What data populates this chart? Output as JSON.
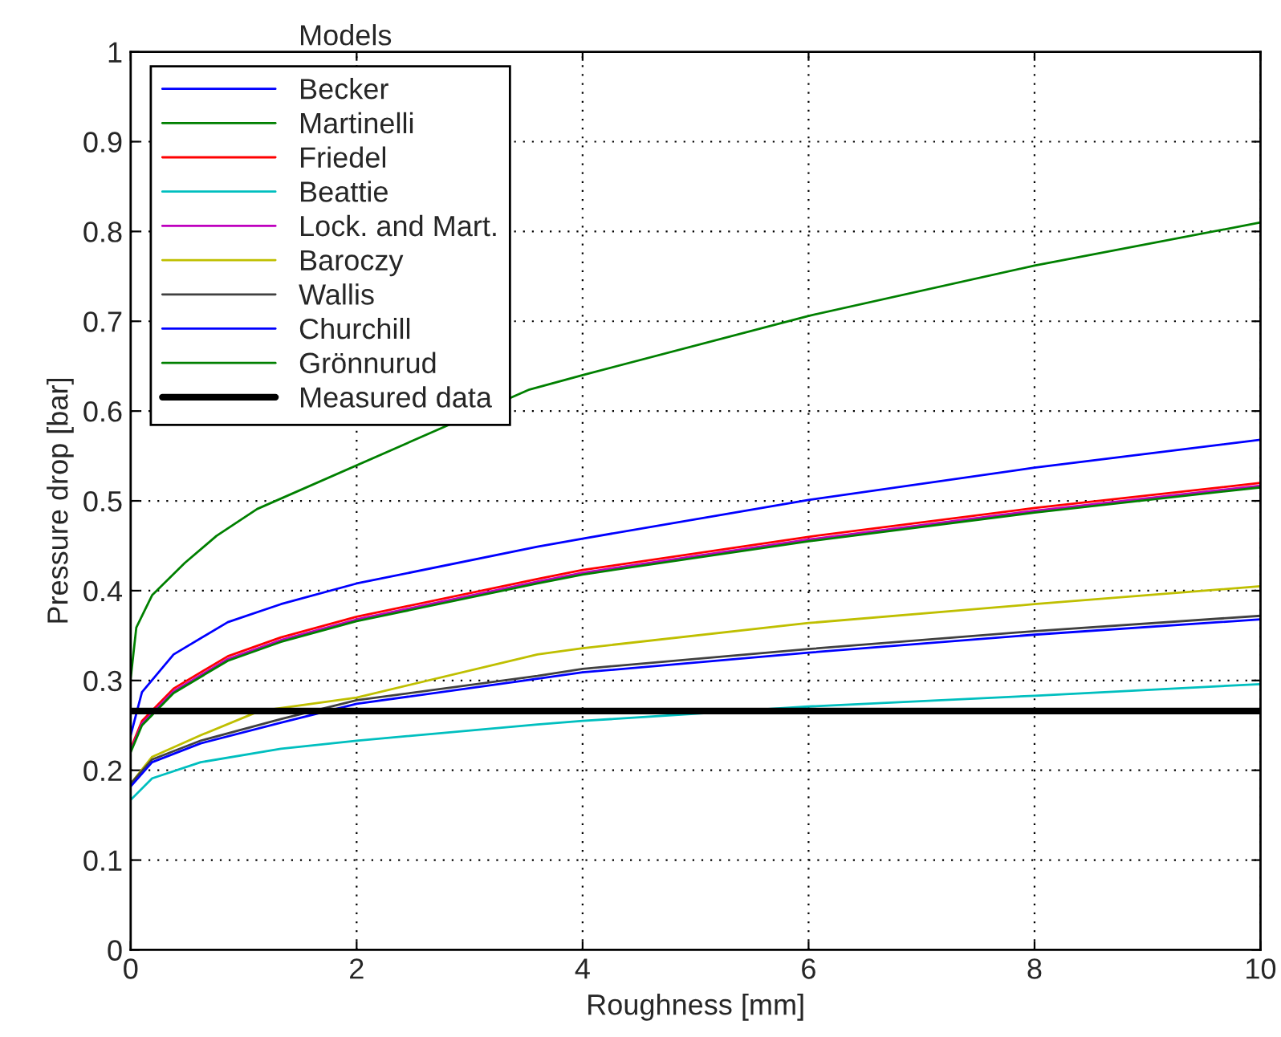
{
  "chart_data": {
    "type": "line",
    "title": "Models",
    "xlabel": "Roughness [mm]",
    "ylabel": "Pressure drop [bar]",
    "xlim": [
      0,
      10
    ],
    "xticks": [
      0,
      2,
      4,
      6,
      8,
      10
    ],
    "ylim": [
      0,
      1
    ],
    "yticks": [
      0,
      0.1,
      0.2,
      0.3,
      0.4,
      0.5,
      0.6,
      0.7,
      0.8,
      0.9,
      1
    ],
    "grid": true,
    "legend": "top left",
    "marker": "none",
    "line_style": "solid",
    "series": [
      {
        "name": "Becker",
        "color": "#0000ff",
        "x": [
          0,
          0.1,
          0.38,
          0.86,
          1.33,
          2,
          3.6,
          4,
          6,
          8,
          10
        ],
        "values": [
          0.239,
          0.287,
          0.329,
          0.365,
          0.385,
          0.408,
          0.449,
          0.458,
          0.501,
          0.537,
          0.568
        ]
      },
      {
        "name": "Martinelli",
        "color": "#008000",
        "x": [
          0,
          0.05,
          0.19,
          0.48,
          0.76,
          1.12,
          2,
          3.53,
          4,
          6,
          8,
          10
        ],
        "values": [
          0.302,
          0.359,
          0.395,
          0.431,
          0.461,
          0.491,
          null,
          0.624,
          0.64,
          0.706,
          0.762,
          0.81
        ]
      },
      {
        "name": "Friedel",
        "color": "#ff0000",
        "x": [
          0,
          0.1,
          0.38,
          0.86,
          1.33,
          2,
          3.6,
          4,
          6,
          8,
          10
        ],
        "values": [
          0.224,
          0.255,
          0.291,
          0.327,
          0.348,
          0.371,
          0.413,
          0.423,
          0.46,
          0.492,
          0.52
        ]
      },
      {
        "name": "Beattie",
        "color": "#00bfbf",
        "x": [
          0,
          0.19,
          0.62,
          1.33,
          2,
          3.6,
          4,
          6,
          8,
          10
        ],
        "values": [
          0.167,
          0.191,
          0.209,
          0.224,
          0.233,
          0.251,
          0.255,
          0.271,
          0.283,
          0.296
        ]
      },
      {
        "name": "Lock. and Mart.",
        "color": "#bf00bf",
        "x": [
          0,
          0.1,
          0.38,
          0.86,
          1.33,
          2,
          3.6,
          4,
          6,
          8,
          10
        ],
        "values": [
          0.222,
          0.252,
          0.288,
          0.324,
          0.345,
          0.368,
          0.41,
          0.42,
          0.457,
          0.489,
          0.517
        ]
      },
      {
        "name": "Baroczy",
        "color": "#bfbf00",
        "x": [
          0,
          0.19,
          0.62,
          1.14,
          2,
          3.6,
          4,
          6,
          8,
          10
        ],
        "values": [
          0.185,
          0.215,
          0.239,
          0.266,
          0.281,
          0.329,
          0.336,
          0.364,
          0.385,
          0.405
        ]
      },
      {
        "name": "Wallis",
        "color": "#404040",
        "x": [
          0,
          0.19,
          0.62,
          1.33,
          2,
          3.6,
          4,
          6,
          8,
          10
        ],
        "values": [
          0.185,
          0.212,
          0.233,
          0.257,
          0.278,
          0.305,
          0.313,
          0.335,
          0.355,
          0.372
        ]
      },
      {
        "name": "Churchill",
        "color": "#0000ff",
        "x": [
          0,
          0.19,
          0.62,
          1.33,
          2,
          3.6,
          4,
          6,
          8,
          10
        ],
        "values": [
          0.182,
          0.209,
          0.23,
          0.253,
          0.274,
          0.302,
          0.309,
          0.331,
          0.351,
          0.368
        ]
      },
      {
        "name": "Grönnurud",
        "color": "#008000",
        "x": [
          0,
          0.1,
          0.38,
          0.86,
          1.33,
          2,
          3.6,
          4,
          6,
          8,
          10
        ],
        "values": [
          0.22,
          0.25,
          0.286,
          0.322,
          0.343,
          0.366,
          0.408,
          0.418,
          0.455,
          0.487,
          0.515
        ]
      }
    ],
    "ref_lines": [
      {
        "axis": "y",
        "value": 0.266,
        "label": "Measured data",
        "color": "#000000"
      }
    ]
  }
}
